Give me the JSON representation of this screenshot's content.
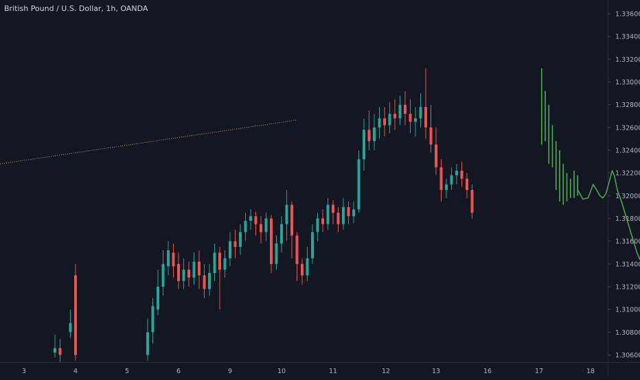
{
  "header": {
    "symbol": "British Pound / U.S. Dollar, 1h, OANDA"
  },
  "colors": {
    "background": "#131722",
    "axis_text": "#b2b5be",
    "up_candle": "#26a69a",
    "down_candle": "#ef5350",
    "projection": "#4caf50",
    "trend_line": "#d9a27a"
  },
  "chart_data": {
    "type": "candlestick",
    "ylim": [
      1.305,
      1.337
    ],
    "y_ticks": [
      "1.33600",
      "1.33400",
      "1.33200",
      "1.33000",
      "1.32800",
      "1.32600",
      "1.32400",
      "1.32200",
      "1.32000",
      "1.31800",
      "1.31600",
      "1.31400",
      "1.31200",
      "1.31000",
      "1.30800",
      "1.30600"
    ],
    "x_ticks": [
      "3",
      "4",
      "5",
      "6",
      "9",
      "10",
      "11",
      "12",
      "13",
      "16",
      "17",
      "18"
    ],
    "grid": false,
    "trend_line": {
      "start": [
        0,
        1.236
      ],
      "end": [
        10.3,
        1.3266
      ]
    },
    "candles": [
      [
        3.6,
        1.3062,
        1.3066,
        1.3058,
        1.3078
      ],
      [
        3.7,
        1.3066,
        1.306,
        1.3054,
        1.3074
      ],
      [
        3.9,
        1.308,
        1.3088,
        1.3075,
        1.31
      ],
      [
        4.0,
        1.313,
        1.306,
        1.3055,
        1.314
      ],
      [
        5.4,
        1.306,
        1.308,
        1.3055,
        1.3092
      ],
      [
        5.5,
        1.308,
        1.3103,
        1.307,
        1.311
      ],
      [
        5.6,
        1.31,
        1.312,
        1.3095,
        1.3135
      ],
      [
        5.7,
        1.312,
        1.314,
        1.3112,
        1.3152
      ],
      [
        5.8,
        1.3138,
        1.3152,
        1.313,
        1.316
      ],
      [
        5.9,
        1.315,
        1.3138,
        1.3128,
        1.3158
      ],
      [
        6.0,
        1.314,
        1.3125,
        1.3118,
        1.315
      ],
      [
        6.1,
        1.3125,
        1.3135,
        1.3118,
        1.3145
      ],
      [
        6.2,
        1.3135,
        1.3128,
        1.312,
        1.3142
      ],
      [
        6.3,
        1.3128,
        1.3142,
        1.3122,
        1.315
      ],
      [
        6.4,
        1.3142,
        1.313,
        1.3118,
        1.3152
      ],
      [
        6.5,
        1.313,
        1.3118,
        1.311,
        1.314
      ],
      [
        6.6,
        1.3118,
        1.3132,
        1.3112,
        1.314
      ],
      [
        6.7,
        1.3132,
        1.315,
        1.3125,
        1.3158
      ],
      [
        6.8,
        1.315,
        1.3135,
        1.31,
        1.3155
      ],
      [
        6.9,
        1.3135,
        1.3145,
        1.3128,
        1.3152
      ],
      [
        7.0,
        1.3145,
        1.316,
        1.3138,
        1.3168
      ],
      [
        7.1,
        1.316,
        1.3155,
        1.3145,
        1.317
      ],
      [
        7.2,
        1.3155,
        1.3168,
        1.3148,
        1.3175
      ],
      [
        7.3,
        1.3168,
        1.3178,
        1.316,
        1.3185
      ],
      [
        7.4,
        1.3178,
        1.3182,
        1.317,
        1.3188
      ],
      [
        7.5,
        1.3182,
        1.3175,
        1.3165,
        1.3186
      ],
      [
        7.6,
        1.3175,
        1.3168,
        1.3158,
        1.3182
      ],
      [
        7.7,
        1.3168,
        1.318,
        1.316,
        1.3185
      ],
      [
        7.8,
        1.318,
        1.314,
        1.3132,
        1.3183
      ],
      [
        7.9,
        1.314,
        1.3158,
        1.3135,
        1.3165
      ],
      [
        8.0,
        1.3158,
        1.3175,
        1.315,
        1.3182
      ],
      [
        8.1,
        1.3175,
        1.3192,
        1.316,
        1.3205
      ],
      [
        8.2,
        1.3192,
        1.3165,
        1.3145,
        1.3195
      ],
      [
        8.3,
        1.3165,
        1.314,
        1.3125,
        1.3168
      ],
      [
        8.4,
        1.314,
        1.313,
        1.3122,
        1.3145
      ],
      [
        8.5,
        1.313,
        1.3145,
        1.3125,
        1.3155
      ],
      [
        8.6,
        1.3145,
        1.3168,
        1.314,
        1.3175
      ],
      [
        8.7,
        1.3168,
        1.318,
        1.316,
        1.3185
      ],
      [
        8.8,
        1.318,
        1.3175,
        1.3168,
        1.3188
      ],
      [
        8.9,
        1.3175,
        1.3192,
        1.317,
        1.3198
      ],
      [
        9.0,
        1.3192,
        1.3185,
        1.3175,
        1.3196
      ],
      [
        9.1,
        1.3185,
        1.3175,
        1.3168,
        1.319
      ],
      [
        9.2,
        1.3175,
        1.319,
        1.317,
        1.3198
      ],
      [
        9.3,
        1.319,
        1.3182,
        1.3175,
        1.3195
      ],
      [
        9.4,
        1.3182,
        1.3188,
        1.3176,
        1.3195
      ],
      [
        9.5,
        1.3188,
        1.3232,
        1.3185,
        1.324
      ],
      [
        9.6,
        1.3232,
        1.3258,
        1.3222,
        1.3268
      ],
      [
        9.7,
        1.3258,
        1.3248,
        1.324,
        1.3275
      ],
      [
        9.8,
        1.3248,
        1.326,
        1.324,
        1.3272
      ],
      [
        9.9,
        1.326,
        1.3268,
        1.325,
        1.3278
      ],
      [
        10.0,
        1.3268,
        1.3262,
        1.3252,
        1.3278
      ],
      [
        10.1,
        1.3262,
        1.3272,
        1.3255,
        1.3282
      ],
      [
        10.2,
        1.3272,
        1.3268,
        1.3258,
        1.3285
      ],
      [
        10.3,
        1.3268,
        1.328,
        1.3262,
        1.3288
      ],
      [
        10.4,
        1.328,
        1.3272,
        1.3262,
        1.3292
      ],
      [
        10.5,
        1.3272,
        1.3265,
        1.3255,
        1.3285
      ],
      [
        10.6,
        1.3265,
        1.3268,
        1.3252,
        1.3278
      ],
      [
        10.7,
        1.3268,
        1.3278,
        1.326,
        1.329
      ],
      [
        10.8,
        1.3278,
        1.326,
        1.325,
        1.3312
      ],
      [
        10.9,
        1.326,
        1.3245,
        1.3238,
        1.328
      ],
      [
        11.0,
        1.3245,
        1.3225,
        1.3218,
        1.326
      ],
      [
        11.1,
        1.3225,
        1.3205,
        1.3195,
        1.3232
      ],
      [
        11.2,
        1.3205,
        1.321,
        1.3198,
        1.3215
      ],
      [
        11.3,
        1.321,
        1.3218,
        1.3205,
        1.3225
      ],
      [
        11.4,
        1.3218,
        1.3222,
        1.321,
        1.3228
      ],
      [
        11.5,
        1.3222,
        1.3215,
        1.3208,
        1.323
      ],
      [
        11.6,
        1.3215,
        1.3205,
        1.3198,
        1.322
      ],
      [
        11.7,
        1.3205,
        1.3185,
        1.318,
        1.321
      ]
    ],
    "projection_bars": [
      [
        13.05,
        1.3245,
        1.3312
      ],
      [
        13.12,
        1.3248,
        1.3292
      ],
      [
        13.19,
        1.3228,
        1.328
      ],
      [
        13.26,
        1.3225,
        1.3262
      ],
      [
        13.33,
        1.3205,
        1.3248
      ],
      [
        13.4,
        1.3195,
        1.324
      ],
      [
        13.47,
        1.3192,
        1.3228
      ],
      [
        13.54,
        1.3195,
        1.322
      ],
      [
        13.61,
        1.3198,
        1.3215
      ],
      [
        13.68,
        1.3198,
        1.3222
      ],
      [
        13.75,
        1.32,
        1.3218
      ]
    ],
    "projection_line": [
      [
        13.75,
        1.3205
      ],
      [
        13.85,
        1.3197
      ],
      [
        13.95,
        1.3198
      ],
      [
        14.05,
        1.321
      ],
      [
        14.12,
        1.3205
      ],
      [
        14.18,
        1.32
      ],
      [
        14.24,
        1.3198
      ],
      [
        14.3,
        1.3202
      ],
      [
        14.36,
        1.3212
      ],
      [
        14.42,
        1.3222
      ],
      [
        14.46,
        1.3218
      ],
      [
        14.52,
        1.3205
      ],
      [
        14.6,
        1.3195
      ],
      [
        14.7,
        1.318
      ],
      [
        14.8,
        1.3165
      ],
      [
        14.9,
        1.315
      ],
      [
        15.0,
        1.314
      ],
      [
        15.08,
        1.3132
      ],
      [
        15.14,
        1.3124
      ],
      [
        15.18,
        1.312
      ]
    ]
  }
}
